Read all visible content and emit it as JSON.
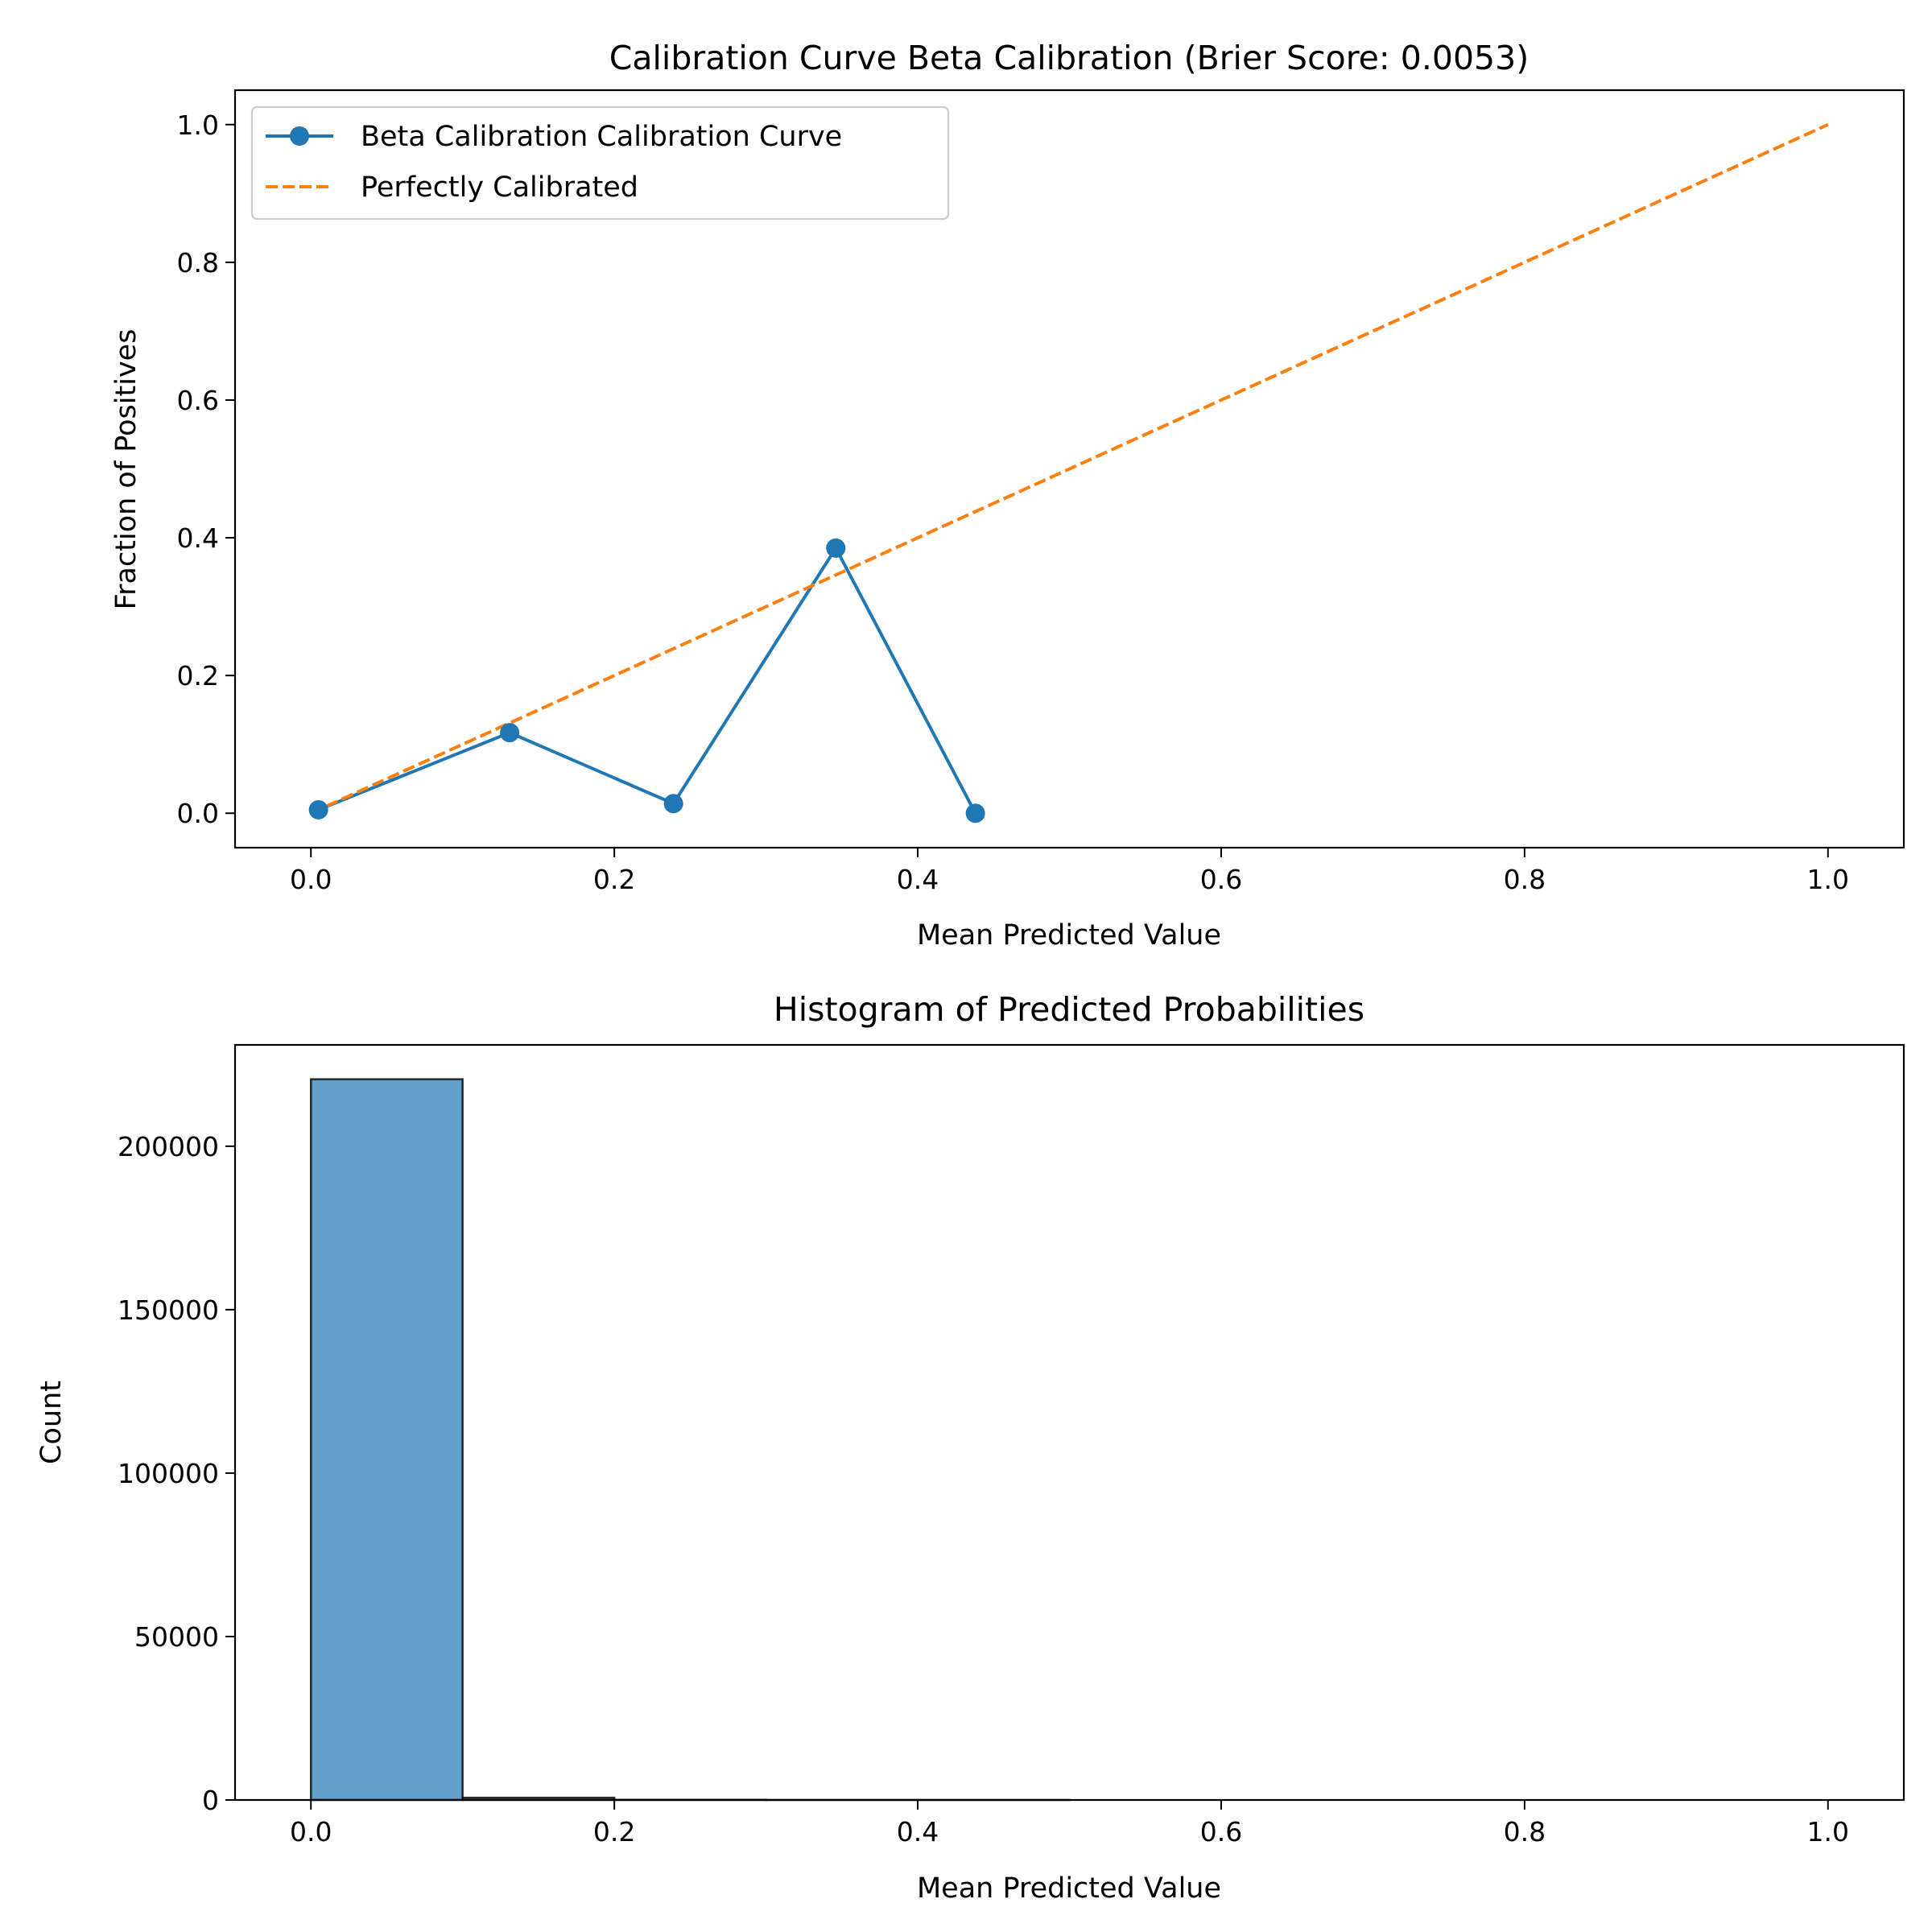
{
  "chart_data": [
    {
      "type": "line",
      "title": "Calibration Curve Beta Calibration (Brier Score: 0.0053)",
      "xlabel": "Mean Predicted Value",
      "ylabel": "Fraction of Positives",
      "xlim": [
        -0.05,
        1.05
      ],
      "ylim": [
        -0.05,
        1.05
      ],
      "xticks": [
        0.0,
        0.2,
        0.4,
        0.6,
        0.8,
        1.0
      ],
      "xtick_labels": [
        "0.0",
        "0.2",
        "0.4",
        "0.6",
        "0.8",
        "1.0"
      ],
      "yticks": [
        0.0,
        0.2,
        0.4,
        0.6,
        0.8,
        1.0
      ],
      "ytick_labels": [
        "0.0",
        "0.2",
        "0.4",
        "0.6",
        "0.8",
        "1.0"
      ],
      "grid": false,
      "legend": "top-left",
      "series": [
        {
          "name": "Beta Calibration Calibration Curve",
          "style": "solid-with-markers",
          "color": "#1f77b4",
          "x": [
            0.005,
            0.131,
            0.239,
            0.346,
            0.438
          ],
          "y": [
            0.005,
            0.117,
            0.014,
            0.385,
            0.0
          ]
        },
        {
          "name": "Perfectly Calibrated",
          "style": "dashed",
          "color": "#ff7f0e",
          "x": [
            0.0,
            1.0
          ],
          "y": [
            0.0,
            1.0
          ]
        }
      ]
    },
    {
      "type": "bar",
      "title": "Histogram of Predicted Probabilities",
      "xlabel": "Mean Predicted Value",
      "ylabel": "Count",
      "xlim": [
        -0.05,
        1.05
      ],
      "ylim": [
        0,
        231000
      ],
      "xticks": [
        0.0,
        0.2,
        0.4,
        0.6,
        0.8,
        1.0
      ],
      "xtick_labels": [
        "0.0",
        "0.2",
        "0.4",
        "0.6",
        "0.8",
        "1.0"
      ],
      "yticks": [
        0,
        50000,
        100000,
        150000,
        200000
      ],
      "ytick_labels": [
        "0",
        "50000",
        "100000",
        "150000",
        "200000"
      ],
      "grid": false,
      "bar_color": "#1f77b4",
      "bar_opacity": 0.7,
      "bin_edges": [
        0.0,
        0.1,
        0.2,
        0.3,
        0.4,
        0.5,
        0.6,
        0.7,
        0.8,
        0.9,
        1.0
      ],
      "values": [
        220500,
        700,
        60,
        20,
        10,
        0,
        0,
        0,
        0,
        0
      ]
    }
  ]
}
